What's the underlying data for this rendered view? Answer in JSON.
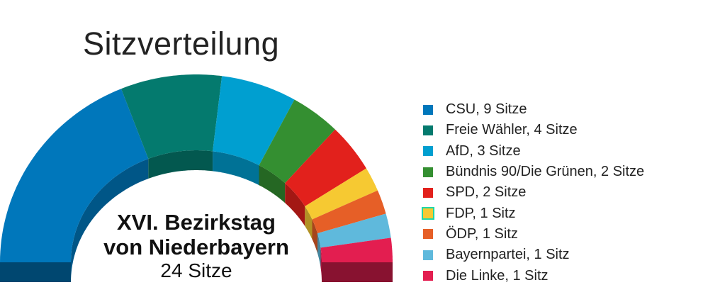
{
  "chart_data": {
    "type": "parliament",
    "title": "Sitzverteilung",
    "center_label": [
      "XVI. Bezirkstag",
      "von Niederbayern",
      "24 Sitze"
    ],
    "total_seats": 24,
    "legend_placement": "right",
    "series": [
      {
        "name": "CSU",
        "seats": 9,
        "label": "CSU, 9 Sitze",
        "color": "#0077bb"
      },
      {
        "name": "Freie Wähler",
        "seats": 4,
        "label": "Freie Wähler, 4 Sitze",
        "color": "#047a6e"
      },
      {
        "name": "AfD",
        "seats": 3,
        "label": "AfD, 3 Sitze",
        "color": "#009fd0"
      },
      {
        "name": "Bündnis 90/Die Grünen",
        "seats": 2,
        "label": "Bündnis 90/Die Grünen, 2 Sitze",
        "color": "#348f31"
      },
      {
        "name": "SPD",
        "seats": 2,
        "label": "SPD, 2 Sitze",
        "color": "#e2211c"
      },
      {
        "name": "FDP",
        "seats": 1,
        "label": "FDP, 1 Sitz",
        "color": "#f6c932",
        "highlighted": true
      },
      {
        "name": "ÖDP",
        "seats": 1,
        "label": "ÖDP, 1 Sitz",
        "color": "#e65f27"
      },
      {
        "name": "Bayernpartei",
        "seats": 1,
        "label": "Bayernpartei, 1 Sitz",
        "color": "#5fb9dc"
      },
      {
        "name": "Die Linke",
        "seats": 1,
        "label": "Die Linke, 1 Sitz",
        "color": "#e31e50"
      }
    ]
  }
}
